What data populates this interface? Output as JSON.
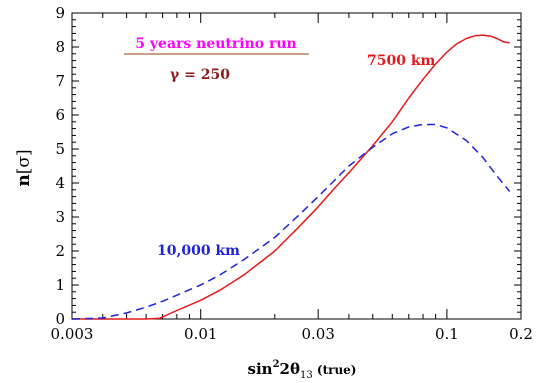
{
  "chart_data": {
    "type": "line",
    "xscale": "log",
    "xlim": [
      0.003,
      0.2
    ],
    "ylim": [
      0,
      9
    ],
    "xticks": [
      {
        "value": 0.003,
        "label": "0.003"
      },
      {
        "value": 0.01,
        "label": "0.01"
      },
      {
        "value": 0.03,
        "label": "0.03"
      },
      {
        "value": 0.1,
        "label": "0.1"
      },
      {
        "value": 0.2,
        "label": "0.2"
      }
    ],
    "yticks": [
      0,
      1,
      2,
      3,
      4,
      5,
      6,
      7,
      8,
      9
    ],
    "ylabel": {
      "main": "n",
      "sym": "[σ]"
    },
    "xlabel": {
      "pre": "sin",
      "sup": "2",
      "mid": "2θ",
      "sub": "13",
      "post": " (true)"
    },
    "grid": false,
    "header": "5 years neutrino run",
    "gamma_label": "γ = 250",
    "colors": {
      "header": "#ff00ff",
      "gamma": "#8b1a1a",
      "line_7500": "#e41a1a",
      "line_10000": "#1f24d6",
      "rule": "#8b4513"
    },
    "series": [
      {
        "name": "7500 km",
        "style": "solid",
        "x": [
          0.003,
          0.004,
          0.005,
          0.006,
          0.0068,
          0.008,
          0.01,
          0.012,
          0.015,
          0.02,
          0.025,
          0.03,
          0.035,
          0.04,
          0.05,
          0.06,
          0.07,
          0.08,
          0.09,
          0.1,
          0.11,
          0.12,
          0.13,
          0.14,
          0.15,
          0.16,
          0.17,
          0.18
        ],
        "y": [
          0.0,
          0.0,
          0.0,
          0.0,
          0.02,
          0.25,
          0.55,
          0.85,
          1.3,
          2.0,
          2.7,
          3.3,
          3.85,
          4.3,
          5.1,
          5.8,
          6.5,
          7.05,
          7.5,
          7.85,
          8.1,
          8.25,
          8.33,
          8.35,
          8.32,
          8.25,
          8.15,
          8.12
        ]
      },
      {
        "name": "10,000 km",
        "style": "dashed",
        "x": [
          0.003,
          0.004,
          0.005,
          0.006,
          0.007,
          0.008,
          0.01,
          0.012,
          0.015,
          0.02,
          0.025,
          0.03,
          0.04,
          0.05,
          0.06,
          0.07,
          0.08,
          0.09,
          0.1,
          0.12,
          0.14,
          0.16,
          0.18
        ],
        "y": [
          0.0,
          0.03,
          0.18,
          0.35,
          0.52,
          0.7,
          1.0,
          1.3,
          1.75,
          2.4,
          3.05,
          3.6,
          4.5,
          5.05,
          5.45,
          5.65,
          5.72,
          5.72,
          5.62,
          5.25,
          4.75,
          4.2,
          3.75
        ]
      }
    ]
  }
}
